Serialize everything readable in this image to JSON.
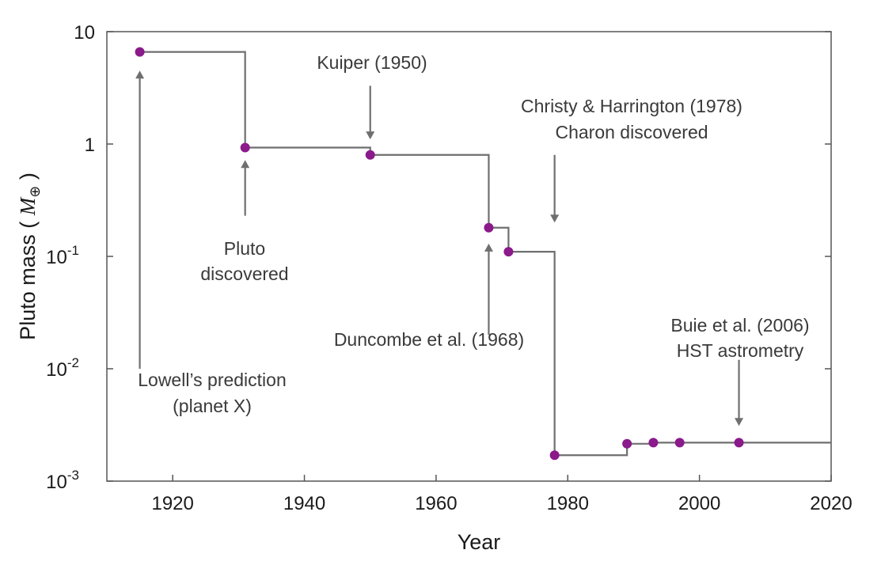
{
  "chart_data": {
    "type": "line",
    "style": "step-with-points",
    "xlabel": "Year",
    "ylabel": "Pluto mass ( ",
    "ylabel_symbol": "M",
    "ylabel_subscript": "⊕",
    "ylabel_close": " )",
    "xlim": [
      1910,
      2020
    ],
    "ylim": [
      0.001,
      10
    ],
    "yscale": "log",
    "grid": false,
    "x_ticks": [
      1920,
      1940,
      1960,
      1980,
      2000,
      2020
    ],
    "x_tick_labels": [
      "1920",
      "1940",
      "1960",
      "1980",
      "2000",
      "2020"
    ],
    "y_ticks": [
      {
        "value": 10,
        "base": "10",
        "exp": ""
      },
      {
        "value": 1,
        "base": "1",
        "exp": ""
      },
      {
        "value": 0.1,
        "base": "10",
        "exp": "-1"
      },
      {
        "value": 0.01,
        "base": "10",
        "exp": "-2"
      },
      {
        "value": 0.001,
        "base": "10",
        "exp": "-3"
      }
    ],
    "point_color": "#8b1a8b",
    "line_color": "#6f6f6f",
    "points": [
      {
        "x": 1915,
        "y": 6.6
      },
      {
        "x": 1931,
        "y": 0.93
      },
      {
        "x": 1950,
        "y": 0.8
      },
      {
        "x": 1968,
        "y": 0.18
      },
      {
        "x": 1971,
        "y": 0.11
      },
      {
        "x": 1978,
        "y": 0.0017
      },
      {
        "x": 1989,
        "y": 0.00215
      },
      {
        "x": 1993,
        "y": 0.0022
      },
      {
        "x": 1997,
        "y": 0.0022
      },
      {
        "x": 2006,
        "y": 0.0022
      }
    ],
    "step_end_x": 2020,
    "annotations": [
      {
        "lines": [
          "Lowell’s prediction",
          "(planet X)"
        ],
        "arrow_x": 1915,
        "arrow_from_y": 0.01,
        "arrow_to_y": 4.5,
        "direction": "up"
      },
      {
        "lines": [
          "Pluto",
          "discovered"
        ],
        "arrow_x": 1931,
        "arrow_from_y": 0.23,
        "arrow_to_y": 0.72,
        "direction": "up"
      },
      {
        "lines": [
          "Kuiper (1950)"
        ],
        "arrow_x": 1950,
        "arrow_from_y": 3.3,
        "arrow_to_y": 1.1,
        "direction": "down"
      },
      {
        "lines": [
          "Christy & Harrington (1978)",
          "Charon discovered"
        ],
        "arrow_x": 1978,
        "arrow_from_y": 0.8,
        "arrow_to_y": 0.2,
        "direction": "down"
      },
      {
        "lines": [
          "Duncombe et al. (1968)"
        ],
        "arrow_x": 1968,
        "arrow_from_y": 0.02,
        "arrow_to_y": 0.13,
        "direction": "up"
      },
      {
        "lines": [
          "Buie et al. (2006)",
          "HST astrometry"
        ],
        "arrow_x": 2006,
        "arrow_from_y": 0.012,
        "arrow_to_y": 0.0031,
        "direction": "down"
      }
    ]
  }
}
